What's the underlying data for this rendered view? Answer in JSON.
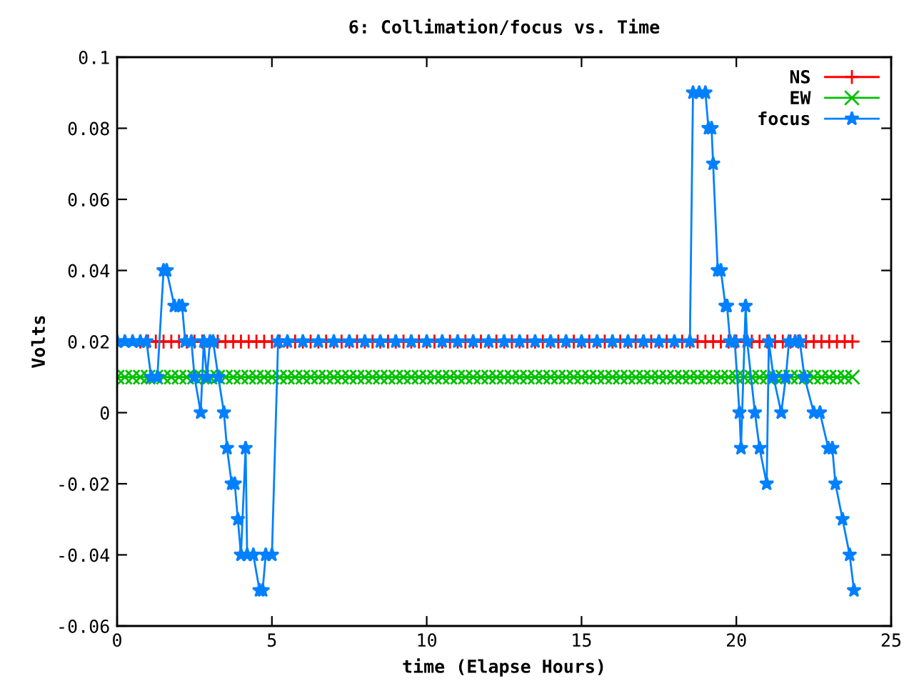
{
  "chart_data": {
    "type": "line",
    "title": "6: Collimation/focus vs. Time",
    "xlabel": "time (Elapse Hours)",
    "ylabel": "Volts",
    "xlim": [
      0,
      25
    ],
    "xticks": [
      0,
      5,
      10,
      15,
      20,
      25
    ],
    "ylim": [
      -0.06,
      0.1
    ],
    "yticks": [
      -0.06,
      -0.04,
      -0.02,
      0,
      0.02,
      0.04,
      0.06,
      0.08,
      0.1
    ],
    "grid": false,
    "legend": "top right",
    "series": [
      {
        "name": "NS",
        "color": "#ff0000",
        "marker": "cross",
        "x": [
          0.75,
          1,
          1.25,
          1.5,
          1.75,
          2,
          2.25,
          2.5,
          2.75,
          3,
          3.25,
          3.5,
          3.75,
          4,
          4.25,
          4.5,
          4.75,
          5,
          5.25,
          5.5,
          5.75,
          6,
          6.25,
          6.5,
          6.75,
          7,
          7.25,
          7.5,
          7.75,
          8,
          8.25,
          8.5,
          8.75,
          9,
          9.25,
          9.5,
          9.75,
          10,
          10.25,
          10.5,
          10.75,
          11,
          11.25,
          11.5,
          11.75,
          12,
          12.25,
          12.5,
          12.75,
          13,
          13.25,
          13.5,
          13.75,
          14,
          14.25,
          14.5,
          14.75,
          15,
          15.25,
          15.5,
          15.75,
          16,
          16.25,
          16.5,
          16.75,
          17,
          17.25,
          17.5,
          17.75,
          18,
          18.25,
          18.5,
          18.75,
          19,
          19.25,
          19.5,
          19.75,
          20,
          20.25,
          20.5,
          20.75,
          21,
          21.25,
          21.5,
          21.75,
          22,
          22.25,
          22.5,
          22.75,
          23,
          23.25,
          23.5,
          23.75
        ],
        "values": [
          0.02,
          0.02,
          0.02,
          0.02,
          0.02,
          0.02,
          0.02,
          0.02,
          0.02,
          0.02,
          0.02,
          0.02,
          0.02,
          0.02,
          0.02,
          0.02,
          0.02,
          0.02,
          0.02,
          0.02,
          0.02,
          0.02,
          0.02,
          0.02,
          0.02,
          0.02,
          0.02,
          0.02,
          0.02,
          0.02,
          0.02,
          0.02,
          0.02,
          0.02,
          0.02,
          0.02,
          0.02,
          0.02,
          0.02,
          0.02,
          0.02,
          0.02,
          0.02,
          0.02,
          0.02,
          0.02,
          0.02,
          0.02,
          0.02,
          0.02,
          0.02,
          0.02,
          0.02,
          0.02,
          0.02,
          0.02,
          0.02,
          0.02,
          0.02,
          0.02,
          0.02,
          0.02,
          0.02,
          0.02,
          0.02,
          0.02,
          0.02,
          0.02,
          0.02,
          0.02,
          0.02,
          0.02,
          0.02,
          0.02,
          0.02,
          0.02,
          0.02,
          0.02,
          0.02,
          0.02,
          0.02,
          0.02,
          0.02,
          0.02,
          0.02,
          0.02,
          0.02,
          0.02,
          0.02,
          0.02,
          0.02,
          0.02,
          0.02
        ]
      },
      {
        "name": "EW",
        "color": "#00c000",
        "marker": "x",
        "x": [
          0,
          0.25,
          0.5,
          0.75,
          1,
          1.25,
          1.5,
          1.75,
          2,
          2.25,
          2.5,
          2.75,
          3,
          3.25,
          3.5,
          3.75,
          4,
          4.25,
          4.5,
          4.75,
          5,
          5.25,
          5.5,
          5.75,
          6,
          6.25,
          6.5,
          6.75,
          7,
          7.25,
          7.5,
          7.75,
          8,
          8.25,
          8.5,
          8.75,
          9,
          9.25,
          9.5,
          9.75,
          10,
          10.25,
          10.5,
          10.75,
          11,
          11.25,
          11.5,
          11.75,
          12,
          12.25,
          12.5,
          12.75,
          13,
          13.25,
          13.5,
          13.75,
          14,
          14.25,
          14.5,
          14.75,
          15,
          15.25,
          15.5,
          15.75,
          16,
          16.25,
          16.5,
          16.75,
          17,
          17.25,
          17.5,
          17.75,
          18,
          18.25,
          18.5,
          18.75,
          19,
          19.25,
          19.5,
          19.75,
          20,
          20.25,
          20.5,
          20.75,
          21,
          21.25,
          21.5,
          21.75,
          22,
          22.25,
          22.5,
          22.75,
          23,
          23.25,
          23.5,
          23.75
        ],
        "values": [
          0.01,
          0.01,
          0.01,
          0.01,
          0.01,
          0.01,
          0.01,
          0.01,
          0.01,
          0.01,
          0.01,
          0.01,
          0.01,
          0.01,
          0.01,
          0.01,
          0.01,
          0.01,
          0.01,
          0.01,
          0.01,
          0.01,
          0.01,
          0.01,
          0.01,
          0.01,
          0.01,
          0.01,
          0.01,
          0.01,
          0.01,
          0.01,
          0.01,
          0.01,
          0.01,
          0.01,
          0.01,
          0.01,
          0.01,
          0.01,
          0.01,
          0.01,
          0.01,
          0.01,
          0.01,
          0.01,
          0.01,
          0.01,
          0.01,
          0.01,
          0.01,
          0.01,
          0.01,
          0.01,
          0.01,
          0.01,
          0.01,
          0.01,
          0.01,
          0.01,
          0.01,
          0.01,
          0.01,
          0.01,
          0.01,
          0.01,
          0.01,
          0.01,
          0.01,
          0.01,
          0.01,
          0.01,
          0.01,
          0.01,
          0.01,
          0.01,
          0.01,
          0.01,
          0.01,
          0.01,
          0.01,
          0.01,
          0.01,
          0.01,
          0.01,
          0.01,
          0.01,
          0.01,
          0.01,
          0.01,
          0.01,
          0.01,
          0.01,
          0.01,
          0.01,
          0.01
        ]
      },
      {
        "name": "focus",
        "color": "#0080ff",
        "marker": "star",
        "x": [
          0,
          0.25,
          0.5,
          0.75,
          0.95,
          1.1,
          1.3,
          1.5,
          1.6,
          1.85,
          2.0,
          2.1,
          2.2,
          2.4,
          2.5,
          2.7,
          2.8,
          2.9,
          3.0,
          3.1,
          3.27,
          3.45,
          3.55,
          3.7,
          3.8,
          3.9,
          4.0,
          4.15,
          4.2,
          4.4,
          4.6,
          4.7,
          4.8,
          5.0,
          5.2,
          5.5,
          6,
          6.5,
          7,
          7.5,
          8,
          8.5,
          9,
          9.5,
          10,
          10.5,
          11,
          11.5,
          12,
          12.5,
          13,
          13.5,
          14,
          14.5,
          15,
          15.5,
          16,
          16.5,
          17,
          17.5,
          18,
          18.5,
          18.6,
          18.8,
          19.0,
          19.1,
          19.2,
          19.25,
          19.4,
          19.5,
          19.65,
          19.7,
          19.8,
          19.95,
          20.1,
          20.15,
          20.3,
          20.35,
          20.6,
          20.75,
          20.98,
          21.05,
          21.2,
          21.45,
          21.6,
          21.7,
          21.9,
          22.05,
          22.2,
          22.5,
          22.7,
          22.97,
          23.1,
          23.2,
          23.43,
          23.66,
          23.8
        ],
        "values": [
          0.02,
          0.02,
          0.02,
          0.02,
          0.02,
          0.01,
          0.01,
          0.04,
          0.04,
          0.03,
          0.03,
          0.03,
          0.02,
          0.02,
          0.01,
          0,
          0.02,
          0.01,
          0.02,
          0.02,
          0.01,
          0,
          -0.01,
          -0.02,
          -0.02,
          -0.03,
          -0.04,
          -0.01,
          -0.04,
          -0.04,
          -0.05,
          -0.05,
          -0.04,
          -0.04,
          0.02,
          0.02,
          0.02,
          0.02,
          0.02,
          0.02,
          0.02,
          0.02,
          0.02,
          0.02,
          0.02,
          0.02,
          0.02,
          0.02,
          0.02,
          0.02,
          0.02,
          0.02,
          0.02,
          0.02,
          0.02,
          0.02,
          0.02,
          0.02,
          0.02,
          0.02,
          0.02,
          0.02,
          0.09,
          0.09,
          0.09,
          0.08,
          0.08,
          0.07,
          0.04,
          0.04,
          0.03,
          0.03,
          0.02,
          0.02,
          0,
          -0.01,
          0.03,
          0.02,
          0,
          -0.01,
          -0.02,
          0.02,
          0.01,
          0,
          0.01,
          0.02,
          0.02,
          0.02,
          0.01,
          0,
          0,
          -0.01,
          -0.01,
          -0.02,
          -0.03,
          -0.04,
          -0.05
        ]
      }
    ]
  }
}
